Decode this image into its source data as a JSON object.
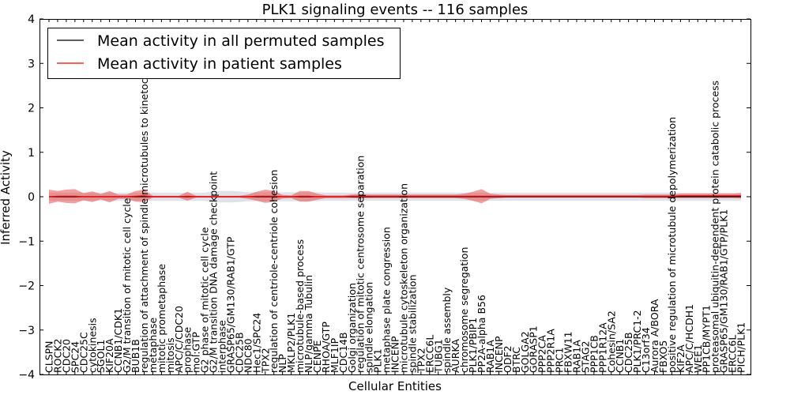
{
  "chart_data": {
    "type": "line",
    "title": "PLK1 signaling events -- 116 samples",
    "xlabel": "Cellular Entities",
    "ylabel": "Inferred Activity",
    "ylim": [
      -4,
      4
    ],
    "yticks": [
      "4",
      "3",
      "2",
      "1",
      "0",
      "−1",
      "−2",
      "−3",
      "−4"
    ],
    "grid": false,
    "legend_position": "upper-left",
    "colors": {
      "permuted": "#000000",
      "patient": "#ff0000",
      "patient_band": "#e8504f",
      "permuted_band": "#c9c9d6"
    },
    "categories": [
      "CLSPN",
      "ROCK2",
      "CDC20",
      "SPC24",
      "CDC25C",
      "cytokinesis",
      "SGOL1",
      "KIF20A",
      "CCNB1/CDK1",
      "G2/M transition of mitotic cell cycle",
      "BUB1B",
      "regulation of attachment of spindle microtubules to kinetochore",
      "metaphase",
      "mitotic prometaphase",
      "mitosis",
      "APC/C/CDC20",
      "prophase",
      "mol:GTP",
      "G2 phase of mitotic cell cycle",
      "G2/M transition DNA damage checkpoint",
      "interphase",
      "GRASP65/GM130/RAB1/GTP",
      "CDC25B",
      "NDC80",
      "Hec1/SPC24",
      "TPX2",
      "regulation of centriole-centriole cohesion",
      "NLP",
      "MKLP2/PLK1",
      "microtubule-based process",
      "NLP/gamma Tubulin",
      "CENPE",
      "RHOA/GTP",
      "MLF1IP",
      "CDC14B",
      "Golgi organization",
      "regulation of mitotic centrosome separation",
      "spindle elongation",
      "PLK1",
      "metaphase plate congression",
      "INCENP",
      "microtubule cytoskeleton organization",
      "spindle stabilization",
      "TPX2",
      "ERCC6L",
      "TUBG1",
      "spindle assembly",
      "AURKA",
      "chromosome segregation",
      "PLK1/PBIP1",
      "PP2A-alpha B56",
      "RAB1A",
      "INCENP",
      "ODF2",
      "BTRC",
      "GOLGA2",
      "GORASP1",
      "PPP2CA",
      "PPP2R1A",
      "PRC1",
      "FBXW11",
      "RAB1A",
      "STAG2",
      "PPP1CB",
      "PPP1R12A",
      "Cohesin/SA2",
      "CCNB1",
      "CDC25B",
      "PLK1/PRC1-2",
      "C13orf34",
      "Aurora A/BORA",
      "FBXO5",
      "positive regulation of microtubule depolymerization",
      "KIF2A",
      "APC/C/HCDH1",
      "WEE1",
      "PP1CB/MYPT1",
      "proteasomal ubiquitin-dependent protein catabolic process",
      "GRASP65/GM130/RAB1/GTP/PLK1",
      "ERCC6L",
      "PICH/PLK1"
    ],
    "series": [
      {
        "name": "Mean activity in all permuted samples",
        "color": "#000000",
        "values": [
          0,
          0,
          0,
          0,
          0,
          0,
          0,
          0,
          0,
          0,
          0,
          0,
          0,
          0,
          0,
          0,
          0,
          0,
          0,
          0,
          0,
          0,
          0,
          0,
          0,
          0,
          0,
          0,
          0,
          0,
          0,
          0,
          0,
          0,
          0,
          0,
          0,
          0,
          0,
          0,
          0,
          0,
          0,
          0,
          0,
          0,
          0,
          0,
          0,
          0,
          0,
          0,
          0,
          0,
          0,
          0,
          0,
          0,
          0,
          0,
          0,
          0,
          0,
          0,
          0,
          0,
          0,
          0,
          0,
          0,
          0,
          0,
          0,
          0,
          0,
          0,
          0,
          0,
          0,
          0,
          0
        ],
        "band": [
          0.09,
          0.09,
          0.09,
          0.09,
          0.09,
          0.09,
          0.09,
          0.09,
          0.09,
          0.09,
          0.09,
          0.09,
          0.09,
          0.09,
          0.09,
          0.09,
          0.09,
          0.09,
          0.09,
          0.13,
          0.13,
          0.13,
          0.12,
          0.1,
          0.1,
          0.1,
          0.1,
          0.1,
          0.1,
          0.1,
          0.1,
          0.1,
          0.09,
          0.09,
          0.09,
          0.09,
          0.09,
          0.09,
          0.09,
          0.09,
          0.09,
          0.09,
          0.09,
          0.09,
          0.09,
          0.09,
          0.09,
          0.09,
          0.09,
          0.09,
          0.09,
          0.09,
          0.09,
          0.09,
          0.09,
          0.09,
          0.09,
          0.09,
          0.09,
          0.09,
          0.09,
          0.09,
          0.09,
          0.09,
          0.09,
          0.09,
          0.09,
          0.09,
          0.09,
          0.09,
          0.09,
          0.09,
          0.09,
          0.09,
          0.09,
          0.09,
          0.09,
          0.09,
          0.09,
          0.09,
          0.09
        ]
      },
      {
        "name": "Mean activity in patient samples",
        "color": "#ff0000",
        "values": [
          0,
          0.01,
          0.01,
          0.01,
          0,
          0,
          0,
          0,
          0,
          0,
          0.01,
          0.02,
          0,
          0,
          0,
          0,
          0.01,
          0,
          0,
          0,
          0,
          0,
          0,
          0,
          0.01,
          0.01,
          0.01,
          0,
          0,
          0.01,
          0.01,
          0,
          0,
          0,
          0,
          0.01,
          0.01,
          0.01,
          0.01,
          0.01,
          0.01,
          0.01,
          0.01,
          0.01,
          0.01,
          0.01,
          0.01,
          0.01,
          0.01,
          0.01,
          0.01,
          0.01,
          0.01,
          0.01,
          0.01,
          0.01,
          0.01,
          0.01,
          0.01,
          0.01,
          0.01,
          0.01,
          0.01,
          0.01,
          0.01,
          0.01,
          0.01,
          0.01,
          0.01,
          0.01,
          0.01,
          0.01,
          0.01,
          0.02,
          0.02,
          0.02,
          0.02,
          0.02,
          0.02,
          0.02,
          0.02
        ],
        "band": [
          0.16,
          0.12,
          0.15,
          0.16,
          0.08,
          0.12,
          0.06,
          0.13,
          0.05,
          0.05,
          0.12,
          0.14,
          0.02,
          0.02,
          0.02,
          0.02,
          0.1,
          0.02,
          0.02,
          0.02,
          0.02,
          0.02,
          0.02,
          0.05,
          0.1,
          0.15,
          0.12,
          0.04,
          0.03,
          0.12,
          0.12,
          0.07,
          0.03,
          0.03,
          0.03,
          0.04,
          0.05,
          0.04,
          0.04,
          0.04,
          0.04,
          0.04,
          0.04,
          0.04,
          0.04,
          0.04,
          0.04,
          0.04,
          0.06,
          0.1,
          0.16,
          0.06,
          0.04,
          0.03,
          0.03,
          0.03,
          0.03,
          0.03,
          0.03,
          0.03,
          0.03,
          0.03,
          0.03,
          0.03,
          0.03,
          0.03,
          0.03,
          0.03,
          0.03,
          0.04,
          0.04,
          0.04,
          0.04,
          0.05,
          0.05,
          0.05,
          0.05,
          0.05,
          0.05,
          0.05,
          0.06
        ]
      }
    ]
  }
}
